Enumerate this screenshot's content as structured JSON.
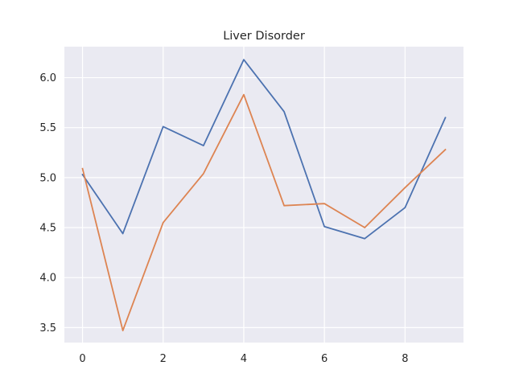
{
  "chart_data": {
    "type": "line",
    "title": "Liver Disorder",
    "xlabel": "",
    "ylabel": "",
    "x": [
      0,
      1,
      2,
      3,
      4,
      5,
      6,
      7,
      8,
      9
    ],
    "xlim": [
      -0.45,
      9.45
    ],
    "ylim": [
      3.35,
      6.31
    ],
    "xticks": [
      0,
      2,
      4,
      6,
      8
    ],
    "yticks": [
      3.5,
      4.0,
      4.5,
      5.0,
      5.5,
      6.0
    ],
    "xtick_labels": [
      "0",
      "2",
      "4",
      "6",
      "8"
    ],
    "ytick_labels": [
      "3.5",
      "4.0",
      "4.5",
      "5.0",
      "5.5",
      "6.0"
    ],
    "grid": true,
    "legend": "none",
    "background": "#eaeaf2",
    "series": [
      {
        "color": "#4c72b0",
        "values": [
          5.03,
          4.44,
          5.51,
          5.32,
          6.18,
          5.66,
          4.51,
          4.39,
          4.7,
          5.6
        ]
      },
      {
        "color": "#dd8452",
        "values": [
          5.09,
          3.47,
          4.55,
          5.04,
          5.83,
          4.72,
          4.74,
          4.5,
          4.9,
          5.28
        ]
      }
    ]
  }
}
